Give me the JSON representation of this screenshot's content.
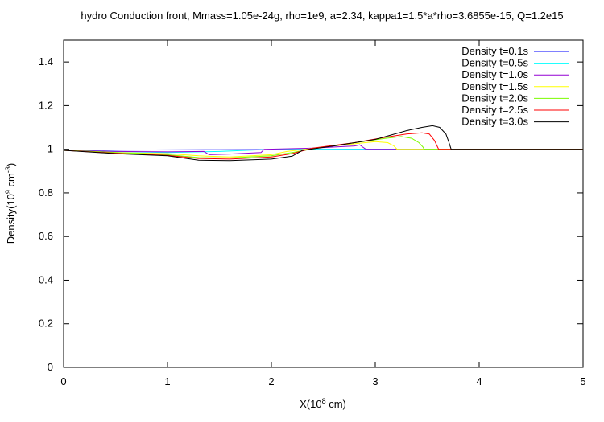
{
  "chart_data": {
    "type": "line",
    "title": "hydro Conduction front, Mmass=1.05e-24g, rho=1e9, a=2.34, kappa1=1.5*a*rho=3.6855e-15, Q=1.2e15",
    "xlabel": {
      "prefix": "X(10",
      "sup": "8",
      "suffix": " cm)"
    },
    "ylabel": {
      "prefix": "Density(10",
      "sup": "9",
      "mid": " cm",
      "sup2": "-3",
      "suffix": ")"
    },
    "xlim": [
      0,
      5
    ],
    "ylim": [
      0,
      1.5
    ],
    "x_ticks": [
      "0",
      "1",
      "2",
      "3",
      "4",
      "5"
    ],
    "y_ticks": [
      "0",
      "0.2",
      "0.4",
      "0.6",
      "0.8",
      "1",
      "1.2",
      "1.4"
    ],
    "legend_position": "top-right",
    "grid": false,
    "series": [
      {
        "name": "Density t=0.1s",
        "color": "#0000ff",
        "points": [
          [
            0,
            0.995
          ],
          [
            1.5,
            0.998
          ],
          [
            2.9,
            1.0
          ],
          [
            2.92,
            1.0
          ],
          [
            5,
            1.0
          ]
        ]
      },
      {
        "name": "Density t=0.5s",
        "color": "#00ffff",
        "points": [
          [
            0,
            0.995
          ],
          [
            0.5,
            0.99
          ],
          [
            1.0,
            0.985
          ],
          [
            1.5,
            0.99
          ],
          [
            2.0,
            1.0
          ],
          [
            2.9,
            1.0
          ],
          [
            5,
            1.0
          ]
        ]
      },
      {
        "name": "Density t=1.0s",
        "color": "#9400d3",
        "points": [
          [
            0,
            0.995
          ],
          [
            0.5,
            0.99
          ],
          [
            1.0,
            0.988
          ],
          [
            1.35,
            0.99
          ],
          [
            1.4,
            0.975
          ],
          [
            1.6,
            0.978
          ],
          [
            1.9,
            0.985
          ],
          [
            1.93,
            1.0
          ],
          [
            2.4,
            1.005
          ],
          [
            2.8,
            1.015
          ],
          [
            2.85,
            1.02
          ],
          [
            2.88,
            1.01
          ],
          [
            2.91,
            1.0
          ],
          [
            5,
            1.0
          ]
        ]
      },
      {
        "name": "Density t=1.5s",
        "color": "#ffff00",
        "points": [
          [
            0,
            0.995
          ],
          [
            0.5,
            0.985
          ],
          [
            1.0,
            0.98
          ],
          [
            1.3,
            0.97
          ],
          [
            1.6,
            0.965
          ],
          [
            2.0,
            0.975
          ],
          [
            2.15,
            0.99
          ],
          [
            2.5,
            1.01
          ],
          [
            2.8,
            1.025
          ],
          [
            3.0,
            1.035
          ],
          [
            3.12,
            1.03
          ],
          [
            3.18,
            1.015
          ],
          [
            3.21,
            1.0
          ],
          [
            5,
            1.0
          ]
        ]
      },
      {
        "name": "Density t=2.0s",
        "color": "#7cfc00",
        "points": [
          [
            0,
            0.995
          ],
          [
            0.5,
            0.985
          ],
          [
            1.0,
            0.975
          ],
          [
            1.3,
            0.962
          ],
          [
            1.6,
            0.96
          ],
          [
            2.0,
            0.97
          ],
          [
            2.2,
            0.985
          ],
          [
            2.5,
            1.01
          ],
          [
            2.8,
            1.03
          ],
          [
            3.1,
            1.05
          ],
          [
            3.25,
            1.058
          ],
          [
            3.35,
            1.05
          ],
          [
            3.42,
            1.03
          ],
          [
            3.46,
            1.01
          ],
          [
            3.47,
            1.0
          ],
          [
            5,
            1.0
          ]
        ]
      },
      {
        "name": "Density t=2.5s",
        "color": "#ff0000",
        "points": [
          [
            0,
            0.995
          ],
          [
            0.5,
            0.982
          ],
          [
            1.0,
            0.972
          ],
          [
            1.3,
            0.958
          ],
          [
            1.6,
            0.955
          ],
          [
            2.0,
            0.965
          ],
          [
            2.2,
            0.98
          ],
          [
            2.4,
            1.005
          ],
          [
            2.8,
            1.03
          ],
          [
            3.1,
            1.055
          ],
          [
            3.3,
            1.07
          ],
          [
            3.45,
            1.075
          ],
          [
            3.52,
            1.07
          ],
          [
            3.57,
            1.04
          ],
          [
            3.6,
            1.01
          ],
          [
            3.61,
            1.0
          ],
          [
            5,
            1.0
          ]
        ]
      },
      {
        "name": "Density t=3.0s",
        "color": "#000000",
        "points": [
          [
            0,
            0.995
          ],
          [
            0.5,
            0.98
          ],
          [
            1.0,
            0.97
          ],
          [
            1.3,
            0.95
          ],
          [
            1.6,
            0.948
          ],
          [
            2.0,
            0.955
          ],
          [
            2.2,
            0.968
          ],
          [
            2.3,
            0.995
          ],
          [
            2.6,
            1.015
          ],
          [
            3.0,
            1.045
          ],
          [
            3.3,
            1.085
          ],
          [
            3.45,
            1.1
          ],
          [
            3.55,
            1.108
          ],
          [
            3.62,
            1.1
          ],
          [
            3.68,
            1.07
          ],
          [
            3.71,
            1.03
          ],
          [
            3.73,
            1.0
          ],
          [
            5,
            1.0
          ]
        ]
      }
    ]
  }
}
